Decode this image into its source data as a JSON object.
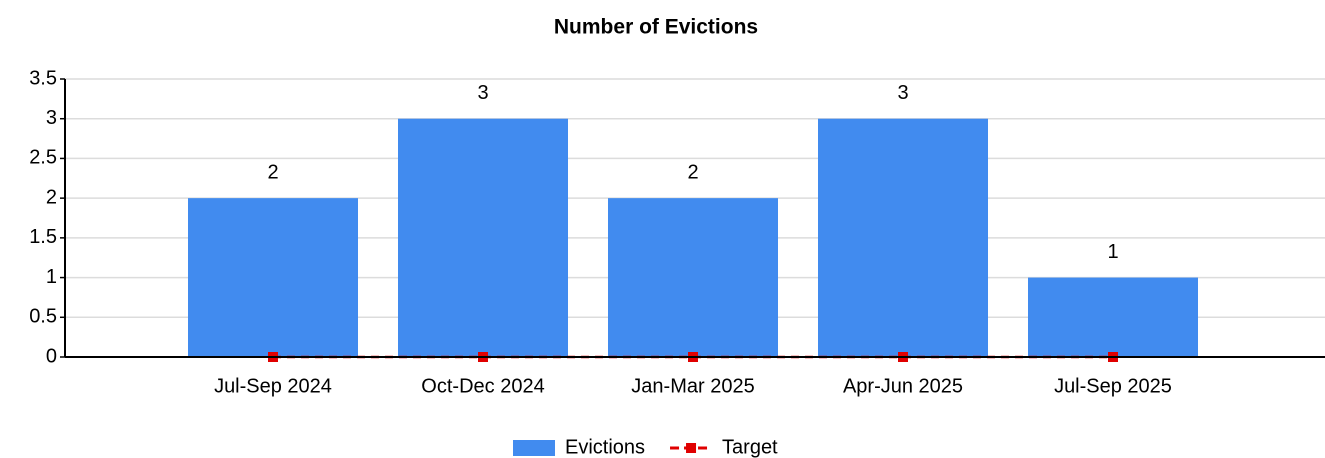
{
  "chart_data": {
    "type": "bar",
    "title": "Number of Evictions",
    "categories": [
      "Jul-Sep 2024",
      "Oct-Dec 2024",
      "Jan-Mar 2025",
      "Apr-Jun 2025",
      "Jul-Sep 2025"
    ],
    "series": [
      {
        "name": "Evictions",
        "type": "bar",
        "color": "#418bef",
        "values": [
          2,
          3,
          2,
          3,
          1
        ]
      },
      {
        "name": "Target",
        "type": "line",
        "color": "#e00000",
        "values": [
          0,
          0,
          0,
          0,
          0
        ]
      }
    ],
    "ylim": [
      0,
      3.5
    ],
    "yticks": [
      0,
      0.5,
      1,
      1.5,
      2,
      2.5,
      3,
      3.5
    ],
    "grid": true,
    "legend": "bottom"
  }
}
